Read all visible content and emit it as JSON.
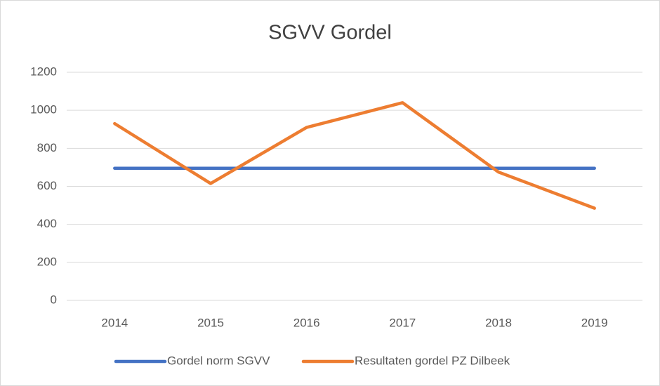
{
  "chart_data": {
    "type": "line",
    "title": "SGVV Gordel",
    "categories": [
      "2014",
      "2015",
      "2016",
      "2017",
      "2018",
      "2019"
    ],
    "series": [
      {
        "name": "Gordel norm SGVV",
        "color": "#4472c4",
        "values": [
          695,
          695,
          695,
          695,
          695,
          695
        ]
      },
      {
        "name": "Resultaten gordel PZ Dilbeek",
        "color": "#ed7d31",
        "values": [
          930,
          615,
          910,
          1040,
          675,
          485
        ]
      }
    ],
    "ylim": [
      0,
      1200
    ],
    "yticks": [
      0,
      200,
      400,
      600,
      800,
      1000,
      1200
    ],
    "grid": true,
    "legend": "bottom"
  }
}
